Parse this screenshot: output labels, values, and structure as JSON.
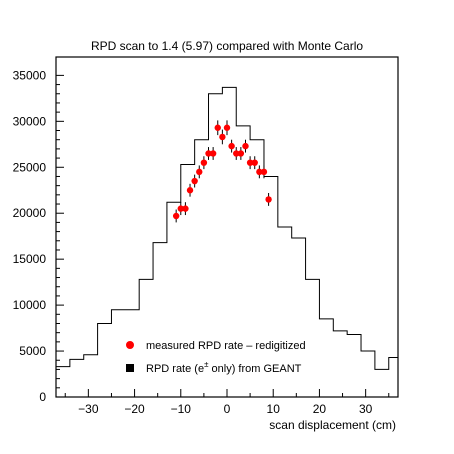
{
  "chart_data": {
    "type": "line",
    "title": "RPD scan to 1.4 (5.97) compared with Monte Carlo",
    "xlabel": "scan displacement (cm)",
    "ylabel": "",
    "xlim": [
      -37,
      37
    ],
    "ylim": [
      0,
      37000
    ],
    "x_ticks": [
      -30,
      -20,
      -10,
      0,
      10,
      20,
      30
    ],
    "x_tick_labels": [
      "−30",
      "−20",
      "−10",
      "0",
      "10",
      "20",
      "30"
    ],
    "y_ticks": [
      0,
      5000,
      10000,
      15000,
      20000,
      25000,
      30000,
      35000
    ],
    "y_tick_labels": [
      "0",
      "5000",
      "10000",
      "15000",
      "20000",
      "25000",
      "30000",
      "35000"
    ],
    "grid": false,
    "legend_position": "bottom-center",
    "series": [
      {
        "name": "RPD rate (e± only) from GEANT",
        "kind": "step-histogram",
        "color": "#000000",
        "bin_edges": [
          -37,
          -34,
          -31,
          -28,
          -25,
          -22,
          -19,
          -16,
          -13,
          -10,
          -7,
          -4,
          -1,
          2,
          5,
          8,
          11,
          14,
          17,
          20,
          23,
          26,
          29,
          32,
          35,
          37
        ],
        "values": [
          3300,
          4100,
          4600,
          8000,
          9500,
          9500,
          12800,
          16800,
          21200,
          25300,
          28000,
          33000,
          33700,
          29500,
          28000,
          24000,
          18500,
          17300,
          12800,
          8500,
          7200,
          6800,
          5000,
          3000,
          4300
        ]
      },
      {
        "name": "measured RPD rate – redigitized",
        "kind": "points-with-errors",
        "color": "#ff0000",
        "points": [
          {
            "x": -11,
            "y": 19700,
            "err": 700
          },
          {
            "x": -10,
            "y": 20500,
            "err": 700
          },
          {
            "x": -9,
            "y": 20500,
            "err": 700
          },
          {
            "x": -8,
            "y": 22500,
            "err": 700
          },
          {
            "x": -7,
            "y": 23500,
            "err": 700
          },
          {
            "x": -6,
            "y": 24500,
            "err": 700
          },
          {
            "x": -5,
            "y": 25500,
            "err": 700
          },
          {
            "x": -4,
            "y": 26500,
            "err": 700
          },
          {
            "x": -3,
            "y": 26500,
            "err": 700
          },
          {
            "x": -2,
            "y": 29300,
            "err": 800
          },
          {
            "x": -1,
            "y": 28300,
            "err": 800
          },
          {
            "x": 0,
            "y": 29300,
            "err": 800
          },
          {
            "x": 1,
            "y": 27300,
            "err": 700
          },
          {
            "x": 2,
            "y": 26500,
            "err": 700
          },
          {
            "x": 3,
            "y": 26500,
            "err": 700
          },
          {
            "x": 4,
            "y": 27300,
            "err": 700
          },
          {
            "x": 5,
            "y": 25500,
            "err": 700
          },
          {
            "x": 6,
            "y": 25500,
            "err": 700
          },
          {
            "x": 7,
            "y": 24500,
            "err": 700
          },
          {
            "x": 8,
            "y": 24500,
            "err": 700
          },
          {
            "x": 9,
            "y": 21500,
            "err": 700
          }
        ]
      }
    ],
    "legend": [
      {
        "label": "measured RPD rate – redigitized",
        "marker": "circle",
        "color": "#ff0000"
      },
      {
        "label_prefix": "RPD rate (e",
        "label_sup": "±",
        "label_suffix": " only) from GEANT",
        "marker": "square",
        "color": "#000000"
      }
    ]
  }
}
